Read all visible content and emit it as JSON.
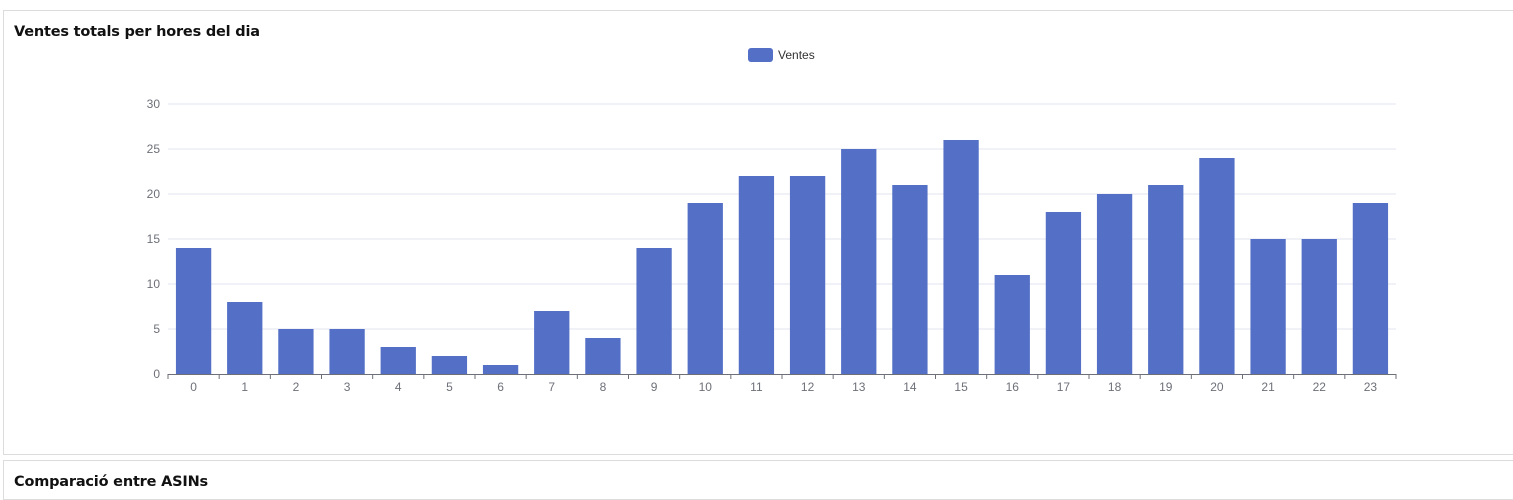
{
  "cards": {
    "sales_by_hour": {
      "title": "Ventes totals per hores del dia"
    },
    "asin_comparison": {
      "title": "Comparació entre ASINs"
    }
  },
  "colors": {
    "bar": "#5470c6",
    "grid": "#e0e6f1",
    "axis": "#6e7079"
  },
  "chart_data": {
    "type": "bar",
    "title": "Ventes totals per hores del dia",
    "categories": [
      "0",
      "1",
      "2",
      "3",
      "4",
      "5",
      "6",
      "7",
      "8",
      "9",
      "10",
      "11",
      "12",
      "13",
      "14",
      "15",
      "16",
      "17",
      "18",
      "19",
      "20",
      "21",
      "22",
      "23"
    ],
    "series": [
      {
        "name": "Ventes",
        "values": [
          14,
          8,
          5,
          5,
          3,
          2,
          1,
          7,
          4,
          14,
          19,
          22,
          22,
          25,
          21,
          26,
          11,
          18,
          20,
          21,
          24,
          15,
          15,
          19
        ]
      }
    ],
    "ylim": [
      0,
      30
    ],
    "yticks": [
      "0",
      "5",
      "10",
      "15",
      "20",
      "25",
      "30"
    ],
    "grid": true,
    "legend": "top-center",
    "xlabel": "",
    "ylabel": ""
  }
}
